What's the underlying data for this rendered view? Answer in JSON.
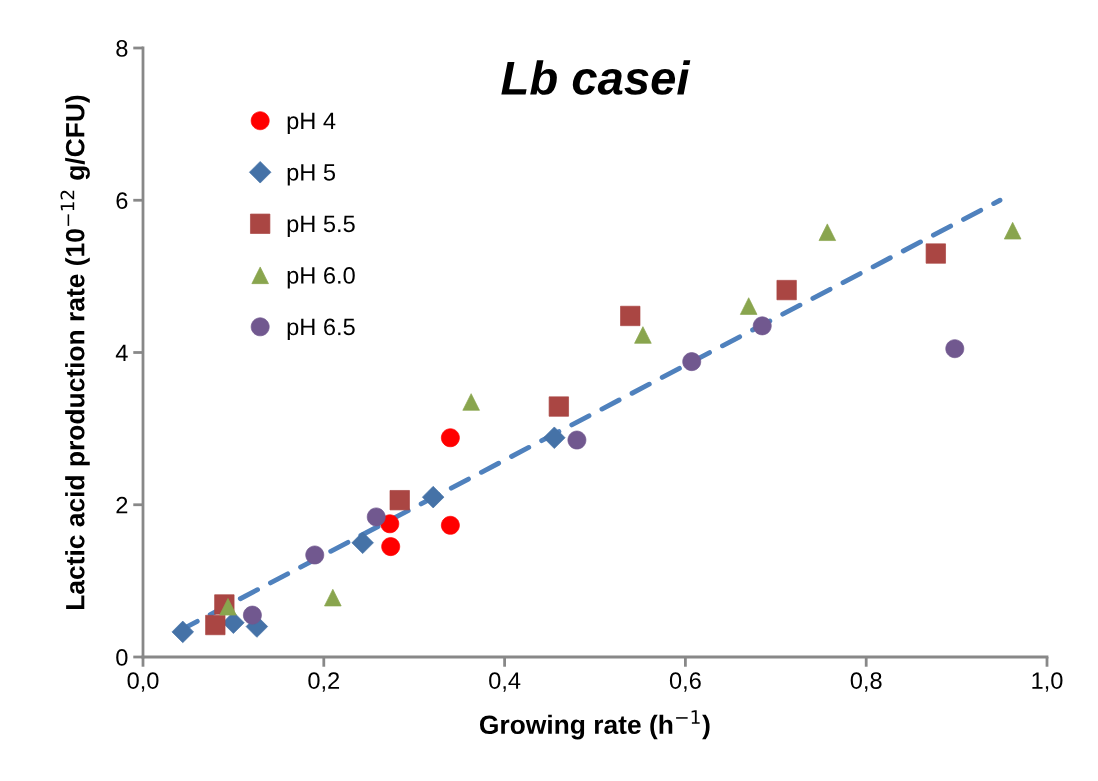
{
  "chart_data": {
    "type": "scatter",
    "title": "Lb casei",
    "xlabel": "Growing rate (h$^{−1}$)",
    "ylabel": "Lactic acid production rate (10$^{−12}$ g/CFU)",
    "xlim": [
      0,
      1
    ],
    "xticks": [
      {
        "value": 0,
        "label": "0,0"
      },
      {
        "value": 0.2,
        "label": "0,2"
      },
      {
        "value": 0.4,
        "label": "0,4"
      },
      {
        "value": 0.6,
        "label": "0,6"
      },
      {
        "value": 0.8,
        "label": "0,8"
      },
      {
        "value": 1,
        "label": "1,0"
      }
    ],
    "ylim": [
      0,
      8
    ],
    "yticks": [
      0,
      2,
      4,
      6,
      8
    ],
    "grid": false,
    "legend": "top left",
    "series": [
      {
        "name": "pH 4",
        "color": "#ff0000",
        "marker": "circle",
        "x": [
          0.273,
          0.274,
          0.34,
          0.34
        ],
        "values": [
          1.75,
          1.45,
          2.88,
          1.73
        ]
      },
      {
        "name": "pH 5",
        "color": "#4572a7",
        "marker": "diamond",
        "x": [
          0.044,
          0.1,
          0.126,
          0.243,
          0.321,
          0.455
        ],
        "values": [
          0.33,
          0.45,
          0.4,
          1.5,
          2.1,
          2.88
        ]
      },
      {
        "name": "pH 5.5",
        "color": "#aa4643",
        "marker": "square",
        "x": [
          0.08,
          0.09,
          0.284,
          0.46,
          0.539,
          0.712,
          0.877
        ],
        "values": [
          0.42,
          0.69,
          2.06,
          3.29,
          4.48,
          4.82,
          5.3
        ]
      },
      {
        "name": "pH 6.0",
        "color": "#89a54e",
        "marker": "triangle",
        "x": [
          0.094,
          0.21,
          0.363,
          0.553,
          0.67,
          0.757,
          0.962
        ],
        "values": [
          0.66,
          0.78,
          3.35,
          4.23,
          4.61,
          5.58,
          5.6
        ]
      },
      {
        "name": "pH 6.5",
        "color": "#71588f",
        "marker": "circle",
        "x": [
          0.121,
          0.19,
          0.258,
          0.48,
          0.607,
          0.685,
          0.898
        ],
        "values": [
          0.55,
          1.34,
          1.84,
          2.85,
          3.88,
          4.35,
          4.05
        ]
      },
      {
        "type": "line",
        "color": "#4f81bd",
        "line_style": "dashed",
        "marker": "none",
        "x": [
          0.041,
          0.948
        ],
        "values": [
          0.35,
          6.0
        ]
      }
    ]
  }
}
